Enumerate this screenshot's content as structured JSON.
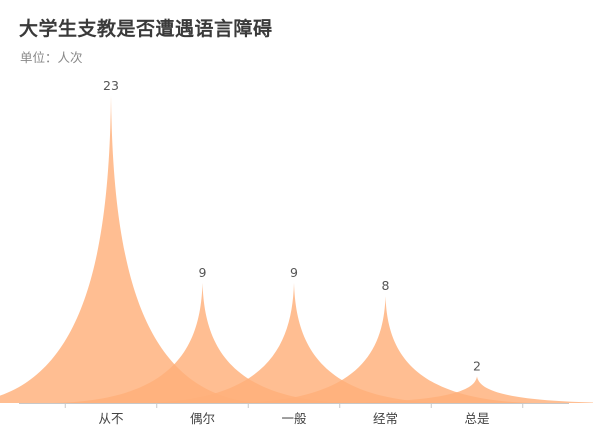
{
  "title": "大学生支教是否遭遇语言障碍",
  "subtitle": "单位：人次",
  "colors": {
    "fill": "#ffb07a",
    "axis": "#c8c8c8"
  },
  "chart_data": {
    "type": "area",
    "style": "pictorial-spike",
    "categories": [
      "从不",
      "偶尔",
      "一般",
      "经常",
      "总是"
    ],
    "values": [
      23,
      9,
      9,
      8,
      2
    ],
    "title": "大学生支教是否遭遇语言障碍",
    "subtitle": "单位：人次",
    "ylim": [
      0,
      23
    ],
    "grid": false,
    "legend": "none"
  }
}
